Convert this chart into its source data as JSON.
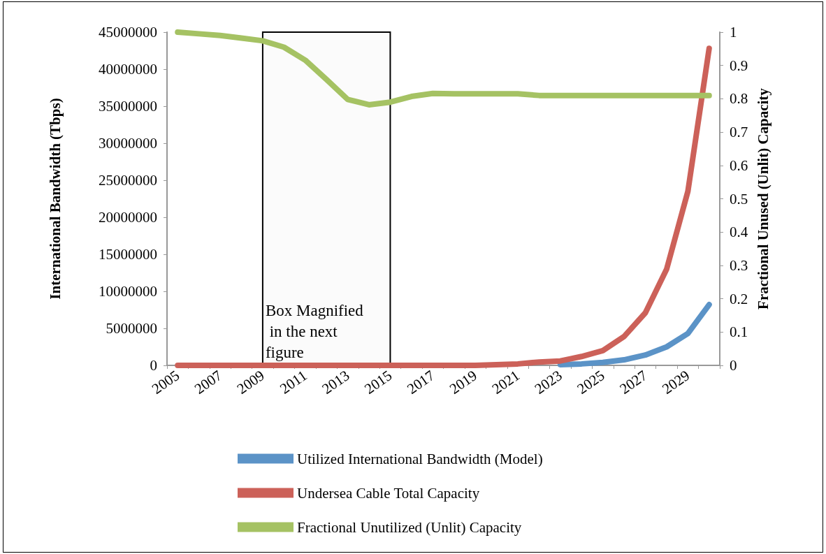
{
  "chart_data": {
    "type": "line",
    "categories": [
      "2005",
      null,
      "2007",
      null,
      "2009",
      null,
      "2011",
      null,
      "2013",
      null,
      "2015",
      null,
      "2017",
      null,
      "2019",
      null,
      "2021",
      null,
      "2023",
      null,
      "2025",
      null,
      "2027",
      null,
      "2029",
      null
    ],
    "ylabel": "International Bandwidth (Tbps)",
    "y2label": "Fractional Unused (Unlit) Capacity",
    "ylim": [
      0,
      45000000
    ],
    "yticks": [
      0,
      5000000,
      10000000,
      15000000,
      20000000,
      25000000,
      30000000,
      35000000,
      40000000,
      45000000
    ],
    "y2lim": [
      0,
      1
    ],
    "y2ticks": [
      0,
      0.1,
      0.2,
      0.3,
      0.4,
      0.5,
      0.6,
      0.7,
      0.8,
      0.9,
      1
    ],
    "series": [
      {
        "name": "Utilized International Bandwidth (Model)",
        "color": "#5b93c7",
        "values": [
          null,
          null,
          null,
          null,
          null,
          null,
          null,
          null,
          null,
          null,
          null,
          null,
          null,
          null,
          null,
          null,
          null,
          null,
          100000,
          200000,
          400000,
          750000,
          1400000,
          2500000,
          4300000,
          8200000
        ]
      },
      {
        "name": "Undersea Cable Total Capacity",
        "color": "#cc6159",
        "values": [
          0,
          0,
          0,
          0,
          0,
          0,
          0,
          0,
          0,
          0,
          0,
          0,
          0,
          0,
          0,
          100000,
          200000,
          450000,
          600000,
          1200000,
          2000000,
          3900000,
          7100000,
          13000000,
          23500000,
          42800000
        ]
      },
      {
        "name": "Fractional Unutilized (Unlit) Capacity",
        "color": "#a5c263",
        "axis": "y2",
        "values": [
          1.0,
          0.995,
          0.99,
          0.982,
          0.974,
          0.955,
          0.916,
          0.858,
          0.798,
          0.782,
          0.79,
          0.807,
          0.816,
          0.815,
          0.815,
          0.815,
          0.815,
          0.81,
          0.81,
          0.81,
          0.81,
          0.81,
          0.81,
          0.81,
          0.81,
          0.81
        ]
      }
    ],
    "bands": [
      {
        "axis": "x",
        "from": "2009",
        "to": "2015",
        "label": "Box Magnified in the next figure",
        "color": "#000000"
      }
    ],
    "legend": "bottom",
    "grid": false,
    "marker": "none",
    "line_style": "solid"
  }
}
